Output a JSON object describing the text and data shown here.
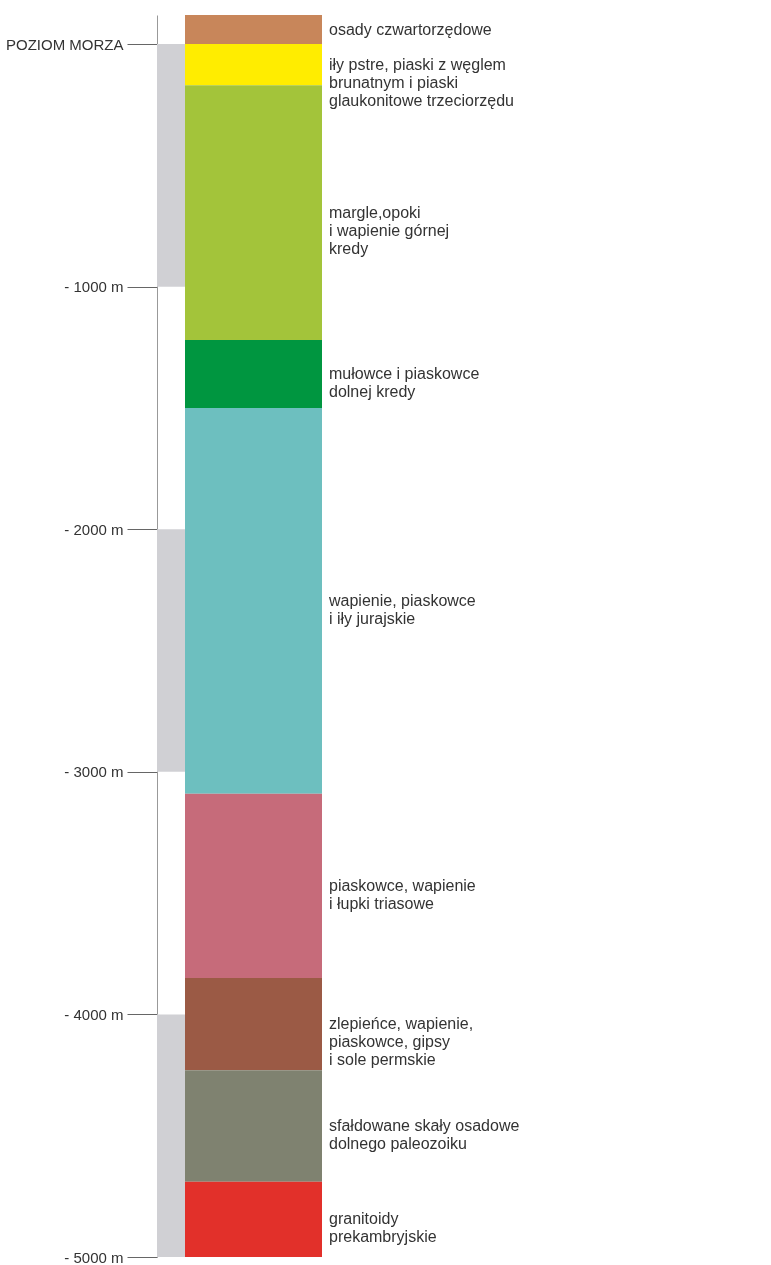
{
  "chart_data": {
    "type": "bar",
    "stacked": true,
    "categories": [
      null
    ],
    "legend": false,
    "grid": false,
    "ylim": [
      -5000,
      120
    ],
    "yticks": [
      {
        "value": 0,
        "label": "POZIOM MORZA"
      },
      {
        "value": -1000,
        "label": "- 1000 m"
      },
      {
        "value": -2000,
        "label": "- 2000 m"
      },
      {
        "value": -3000,
        "label": "- 3000 m"
      },
      {
        "value": -4000,
        "label": "- 4000 m"
      },
      {
        "value": -5000,
        "label": "- 5000 m"
      }
    ],
    "series": [
      {
        "name": "osady czwartorzędowe",
        "color": "#c8865a",
        "values": [
          120
        ]
      },
      {
        "name": "iły pstre, piaski z węglem\nbrunatnym i piaski\nglaukonitowe trzeciorzędu",
        "color": "#ffed00",
        "values": [
          -170
        ]
      },
      {
        "name": "margle,opoki\ni wapienie górnej\nkredy",
        "color": "#a3c43a",
        "values": [
          -1050
        ]
      },
      {
        "name": "mułowce i piaskowce\ndolnej kredy",
        "color": "#009640",
        "values": [
          -280
        ]
      },
      {
        "name": "wapienie, piaskowce\ni iły jurajskie",
        "color": "#6dbfbf",
        "values": [
          -1590
        ]
      },
      {
        "name": "piaskowce, wapienie\ni łupki triasowe",
        "color": "#c66b7a",
        "values": [
          -760
        ]
      },
      {
        "name": "zlepieńce, wapienie,\npiaskowce, gipsy\ni sole permskie",
        "color": "#9b5a45",
        "values": [
          -380
        ]
      },
      {
        "name": "sfałdowane skały osadowe\ndolnego paleozoiku",
        "color": "#7f8270",
        "values": [
          -460
        ]
      },
      {
        "name": "granitoidy\nprekambryjskie",
        "color": "#e2302a",
        "values": [
          -310
        ]
      }
    ]
  }
}
